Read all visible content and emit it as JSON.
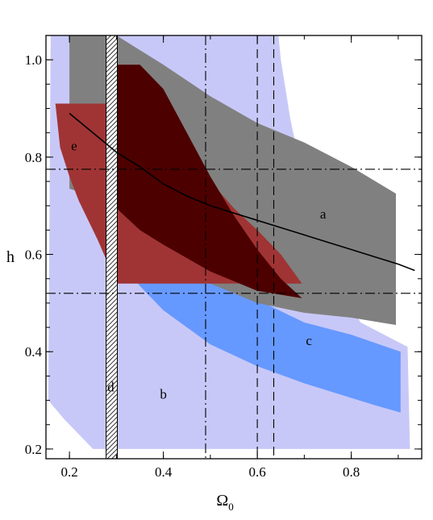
{
  "chart_data": {
    "type": "area",
    "xlabel": "Ω",
    "xlabel_sub": "0",
    "ylabel": "h",
    "xlim": [
      0.15,
      0.95
    ],
    "ylim": [
      0.18,
      1.05
    ],
    "x_ticks": [
      0.2,
      0.4,
      0.6,
      0.8
    ],
    "x_tick_labels": [
      "0.2",
      "0.4",
      "0.6",
      "0.8"
    ],
    "y_ticks": [
      0.2,
      0.4,
      0.6,
      0.8,
      1.0
    ],
    "y_tick_labels": [
      "0.2",
      "0.4",
      "0.6",
      "0.8",
      "1.0"
    ],
    "grid": false,
    "regions": [
      {
        "label": "b",
        "color": "#c8c8f8",
        "polygon": [
          [
            0.155,
            0.3
          ],
          [
            0.16,
            1.05
          ],
          [
            0.645,
            1.05
          ],
          [
            0.65,
            1.0
          ],
          [
            0.67,
            0.88
          ],
          [
            0.7,
            0.74
          ],
          [
            0.75,
            0.57
          ],
          [
            0.82,
            0.46
          ],
          [
            0.92,
            0.41
          ],
          [
            0.925,
            0.2
          ],
          [
            0.25,
            0.2
          ],
          [
            0.22,
            0.23
          ],
          [
            0.19,
            0.26
          ]
        ],
        "label_at": [
          0.4,
          0.31
        ]
      },
      {
        "label": "c",
        "color": "#6699ff",
        "polygon": [
          [
            0.205,
            0.96
          ],
          [
            0.27,
            0.96
          ],
          [
            0.3,
            0.72
          ],
          [
            0.4,
            0.62
          ],
          [
            0.55,
            0.53
          ],
          [
            0.7,
            0.46
          ],
          [
            0.8,
            0.435
          ],
          [
            0.905,
            0.4
          ],
          [
            0.905,
            0.275
          ],
          [
            0.85,
            0.29
          ],
          [
            0.7,
            0.335
          ],
          [
            0.6,
            0.37
          ],
          [
            0.5,
            0.415
          ],
          [
            0.4,
            0.485
          ],
          [
            0.35,
            0.535
          ],
          [
            0.33,
            0.56
          ],
          [
            0.27,
            0.76
          ],
          [
            0.23,
            0.835
          ],
          [
            0.21,
            0.87
          ]
        ],
        "label_at": [
          0.71,
          0.42
        ]
      },
      {
        "label": "a",
        "color": "#808080",
        "polygon": [
          [
            0.2,
            1.05
          ],
          [
            0.3,
            1.05
          ],
          [
            0.4,
            0.99
          ],
          [
            0.5,
            0.925
          ],
          [
            0.6,
            0.87
          ],
          [
            0.7,
            0.83
          ],
          [
            0.8,
            0.78
          ],
          [
            0.895,
            0.725
          ],
          [
            0.895,
            0.455
          ],
          [
            0.8,
            0.47
          ],
          [
            0.7,
            0.48
          ],
          [
            0.6,
            0.5
          ],
          [
            0.5,
            0.54
          ],
          [
            0.4,
            0.6
          ],
          [
            0.3,
            0.68
          ],
          [
            0.25,
            0.72
          ],
          [
            0.2,
            0.735
          ]
        ],
        "label_at": [
          0.74,
          0.68
        ]
      },
      {
        "label": "e",
        "color": "#a03434",
        "polygon": [
          [
            0.17,
            0.91
          ],
          [
            0.4,
            0.91
          ],
          [
            0.4,
            0.885
          ],
          [
            0.45,
            0.81
          ],
          [
            0.5,
            0.75
          ],
          [
            0.55,
            0.695
          ],
          [
            0.6,
            0.65
          ],
          [
            0.65,
            0.6
          ],
          [
            0.695,
            0.54
          ],
          [
            0.3,
            0.54
          ],
          [
            0.3,
            0.56
          ],
          [
            0.278,
            0.56
          ],
          [
            0.278,
            0.59
          ],
          [
            0.26,
            0.63
          ],
          [
            0.24,
            0.67
          ],
          [
            0.22,
            0.71
          ],
          [
            0.2,
            0.76
          ],
          [
            0.18,
            0.82
          ]
        ],
        "label_at": [
          0.21,
          0.82
        ]
      },
      {
        "label": "",
        "color": "#4d0000",
        "polygon": [
          [
            0.3,
            0.99
          ],
          [
            0.35,
            0.99
          ],
          [
            0.4,
            0.94
          ],
          [
            0.45,
            0.85
          ],
          [
            0.5,
            0.76
          ],
          [
            0.55,
            0.68
          ],
          [
            0.6,
            0.61
          ],
          [
            0.65,
            0.55
          ],
          [
            0.695,
            0.51
          ],
          [
            0.6,
            0.525
          ],
          [
            0.5,
            0.565
          ],
          [
            0.4,
            0.62
          ],
          [
            0.35,
            0.65
          ],
          [
            0.3,
            0.695
          ]
        ]
      },
      {
        "label": "d",
        "color": "hatch",
        "polygon": [
          [
            0.278,
            0.18
          ],
          [
            0.302,
            0.18
          ],
          [
            0.302,
            1.05
          ],
          [
            0.278,
            1.05
          ]
        ],
        "label_at": [
          0.288,
          0.325
        ]
      }
    ],
    "curve": [
      [
        0.2,
        0.89
      ],
      [
        0.25,
        0.85
      ],
      [
        0.3,
        0.81
      ],
      [
        0.35,
        0.78
      ],
      [
        0.4,
        0.745
      ],
      [
        0.45,
        0.72
      ],
      [
        0.5,
        0.7
      ],
      [
        0.55,
        0.685
      ],
      [
        0.6,
        0.67
      ],
      [
        0.65,
        0.655
      ],
      [
        0.7,
        0.64
      ],
      [
        0.75,
        0.625
      ],
      [
        0.8,
        0.61
      ],
      [
        0.85,
        0.595
      ],
      [
        0.9,
        0.58
      ],
      [
        0.935,
        0.567
      ]
    ],
    "hlines": [
      {
        "y": 0.775,
        "style": "dashdot"
      },
      {
        "y": 0.52,
        "style": "dashdot"
      }
    ],
    "vlines": [
      {
        "x": 0.49,
        "style": "dashdot"
      },
      {
        "x": 0.6,
        "style": "dashed"
      },
      {
        "x": 0.635,
        "style": "dashed"
      }
    ]
  }
}
